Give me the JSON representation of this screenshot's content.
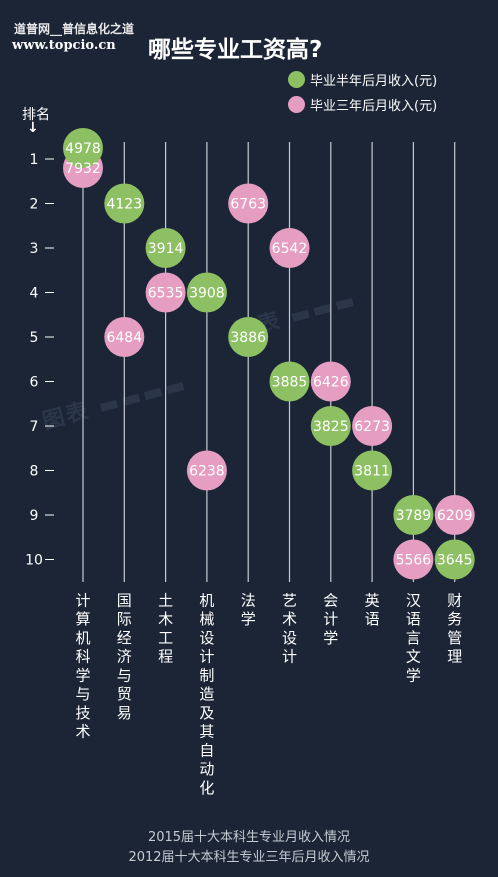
{
  "site": {
    "line1": "道普网__普信息化之道",
    "line2": "www.topcio.cn"
  },
  "title": "哪些专业工资高?",
  "rank_label": "排名",
  "rank_arrow": "↓",
  "footer": {
    "line1": "2015届十大本科生专业月收入情况",
    "line2": "2012届十大本科生专业三年后月收入情况"
  },
  "watermark": "图表",
  "colors": {
    "green": "#8cc063",
    "pink": "#e59ec2",
    "background": "#1b2536",
    "line": "#c7cbd1"
  },
  "chart_data": {
    "type": "scatter",
    "title": "哪些专业工资高?",
    "xlabel": "",
    "ylabel": "排名",
    "categories": [
      "计算机科学与技术",
      "国际经济与贸易",
      "土木工程",
      "机械设计制造及其自动化",
      "法学",
      "艺术设计",
      "会计学",
      "英语",
      "汉语言文学",
      "财务管理"
    ],
    "y_ticks": [
      1,
      2,
      3,
      4,
      5,
      6,
      7,
      8,
      9,
      10
    ],
    "ylim": [
      1,
      10
    ],
    "y_inverted": true,
    "legend_position": "top-right",
    "series": [
      {
        "name": "毕业半年后月收入(元)",
        "color": "#8cc063",
        "points": [
          {
            "category": "计算机科学与技术",
            "rank": 1,
            "value": 4978
          },
          {
            "category": "国际经济与贸易",
            "rank": 2,
            "value": 4123
          },
          {
            "category": "土木工程",
            "rank": 3,
            "value": 3914
          },
          {
            "category": "机械设计制造及其自动化",
            "rank": 4,
            "value": 3908
          },
          {
            "category": "法学",
            "rank": 5,
            "value": 3886
          },
          {
            "category": "艺术设计",
            "rank": 6,
            "value": 3885
          },
          {
            "category": "会计学",
            "rank": 7,
            "value": 3825
          },
          {
            "category": "英语",
            "rank": 8,
            "value": 3811
          },
          {
            "category": "汉语言文学",
            "rank": 9,
            "value": 3789
          },
          {
            "category": "财务管理",
            "rank": 10,
            "value": 3645
          }
        ]
      },
      {
        "name": "毕业三年后月收入(元)",
        "color": "#e59ec2",
        "points": [
          {
            "category": "计算机科学与技术",
            "rank": 1,
            "value": 7932
          },
          {
            "category": "法学",
            "rank": 2,
            "value": 6763
          },
          {
            "category": "艺术设计",
            "rank": 3,
            "value": 6542
          },
          {
            "category": "土木工程",
            "rank": 4,
            "value": 6535
          },
          {
            "category": "国际经济与贸易",
            "rank": 5,
            "value": 6484
          },
          {
            "category": "会计学",
            "rank": 6,
            "value": 6426
          },
          {
            "category": "英语",
            "rank": 7,
            "value": 6273
          },
          {
            "category": "机械设计制造及其自动化",
            "rank": 8,
            "value": 6238
          },
          {
            "category": "财务管理",
            "rank": 9,
            "value": 6209
          },
          {
            "category": "汉语言文学",
            "rank": 10,
            "value": 5566
          }
        ]
      }
    ]
  }
}
